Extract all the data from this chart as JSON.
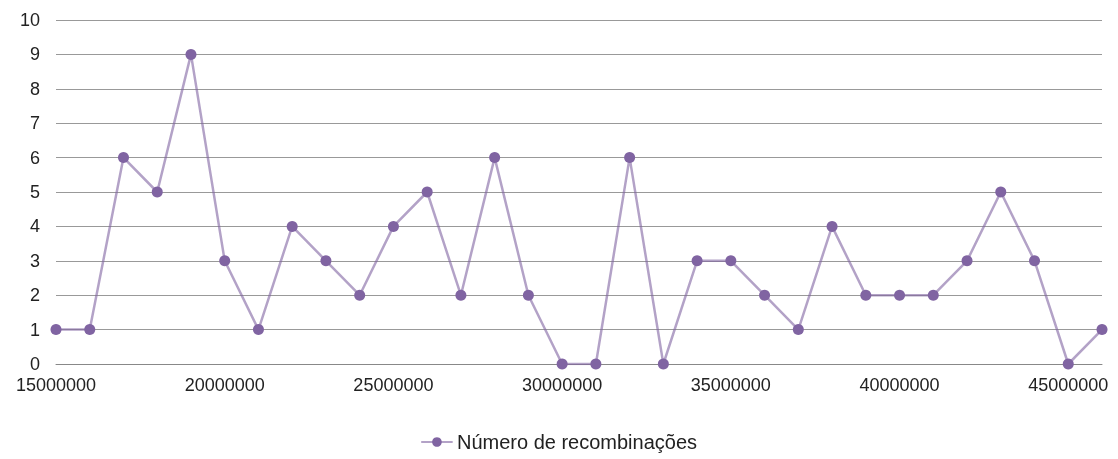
{
  "chart_data": {
    "type": "line",
    "x": [
      15000000,
      16000000,
      17000000,
      18000000,
      19000000,
      20000000,
      21000000,
      22000000,
      23000000,
      24000000,
      25000000,
      26000000,
      27000000,
      28000000,
      29000000,
      30000000,
      31000000,
      32000000,
      33000000,
      34000000,
      35000000,
      36000000,
      37000000,
      38000000,
      39000000,
      40000000,
      41000000,
      42000000,
      43000000,
      44000000,
      45000000,
      46000000
    ],
    "series": [
      {
        "name": "Número de recombinações",
        "color": "#8064a2",
        "values": [
          1,
          1,
          6,
          5,
          9,
          3,
          1,
          4,
          3,
          2,
          4,
          5,
          2,
          6,
          2,
          0,
          0,
          6,
          0,
          3,
          3,
          2,
          1,
          4,
          2,
          2,
          2,
          3,
          5,
          3,
          0,
          1
        ]
      }
    ],
    "xlim": [
      15000000,
      46000000
    ],
    "xticks": [
      15000000,
      20000000,
      25000000,
      30000000,
      35000000,
      40000000,
      45000000
    ],
    "ylim": [
      0,
      10
    ],
    "yticks": [
      0,
      1,
      2,
      3,
      4,
      5,
      6,
      7,
      8,
      9,
      10
    ],
    "grid": "y",
    "legend": "bottom",
    "marker": "circle",
    "line_style": "solid"
  }
}
